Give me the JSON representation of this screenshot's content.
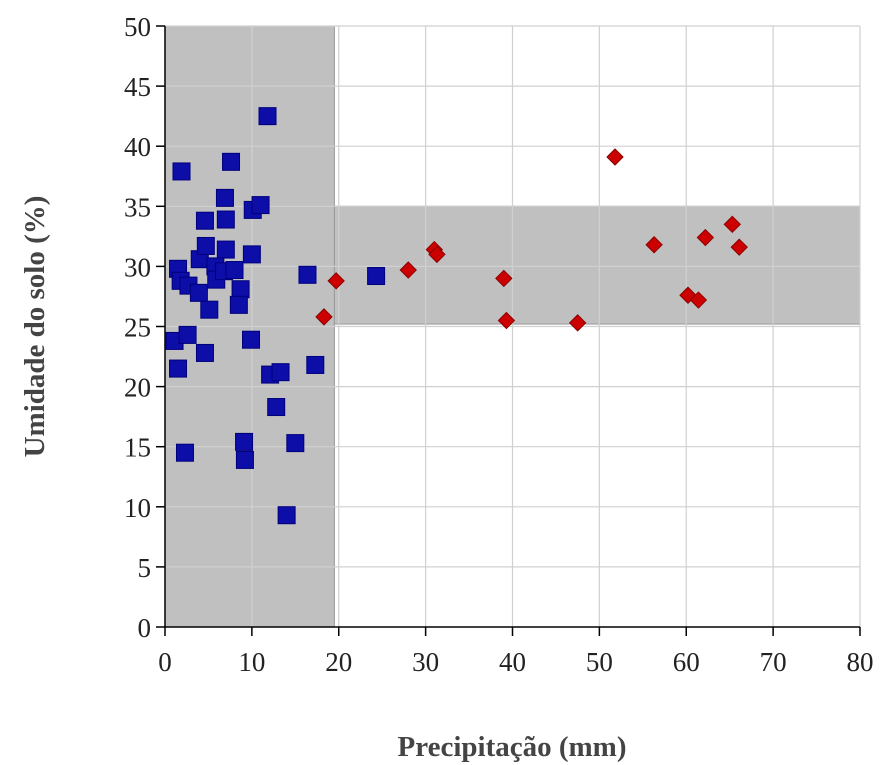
{
  "chart_data": {
    "type": "scatter",
    "title": "",
    "xlabel": "Precipitação (mm)",
    "ylabel": "Umidade do solo (%)",
    "xlim": [
      0,
      80
    ],
    "ylim": [
      0,
      50
    ],
    "xticks": [
      "0",
      "10",
      "20",
      "30",
      "40",
      "50",
      "60",
      "70",
      "80"
    ],
    "yticks": [
      "0",
      "5",
      "10",
      "15",
      "20",
      "25",
      "30",
      "35",
      "40",
      "45",
      "50"
    ],
    "grid": true,
    "legend": "none",
    "shaded_regions": [
      {
        "x": [
          0,
          19.5
        ],
        "y": [
          0,
          50
        ]
      },
      {
        "x": [
          19.5,
          80
        ],
        "y": [
          25.2,
          35
        ]
      }
    ],
    "series": [
      {
        "marker": "square",
        "color": "#0d0da8",
        "points": [
          [
            1.9,
            37.9
          ],
          [
            1.5,
            29.8
          ],
          [
            1.8,
            28.8
          ],
          [
            2.7,
            28.4
          ],
          [
            1.1,
            23.8
          ],
          [
            1.5,
            21.5
          ],
          [
            2.6,
            24.3
          ],
          [
            2.3,
            14.5
          ],
          [
            3.9,
            27.8
          ],
          [
            4.0,
            30.6
          ],
          [
            4.6,
            33.8
          ],
          [
            4.7,
            31.7
          ],
          [
            4.6,
            22.8
          ],
          [
            5.1,
            26.4
          ],
          [
            5.8,
            30.0
          ],
          [
            5.9,
            28.9
          ],
          [
            6.9,
            35.7
          ],
          [
            7.0,
            33.9
          ],
          [
            7.0,
            31.4
          ],
          [
            6.8,
            29.6
          ],
          [
            7.6,
            38.7
          ],
          [
            8.0,
            29.7
          ],
          [
            8.7,
            28.1
          ],
          [
            8.5,
            26.8
          ],
          [
            9.1,
            15.4
          ],
          [
            9.2,
            13.9
          ],
          [
            10.0,
            31.0
          ],
          [
            10.1,
            34.7
          ],
          [
            11.0,
            35.1
          ],
          [
            9.9,
            23.9
          ],
          [
            11.8,
            42.5
          ],
          [
            12.1,
            21.0
          ],
          [
            12.8,
            18.3
          ],
          [
            13.3,
            21.2
          ],
          [
            14.0,
            9.3
          ],
          [
            15.0,
            15.3
          ],
          [
            16.4,
            29.3
          ],
          [
            17.3,
            21.8
          ],
          [
            24.3,
            29.2
          ]
        ]
      },
      {
        "marker": "diamond",
        "color": "#cc0000",
        "points": [
          [
            18.3,
            25.8
          ],
          [
            19.7,
            28.8
          ],
          [
            28.0,
            29.7
          ],
          [
            31.0,
            31.4
          ],
          [
            31.3,
            31.0
          ],
          [
            39.0,
            29.0
          ],
          [
            39.3,
            25.5
          ],
          [
            47.5,
            25.3
          ],
          [
            51.8,
            39.1
          ],
          [
            56.3,
            31.8
          ],
          [
            60.2,
            27.6
          ],
          [
            61.4,
            27.2
          ],
          [
            62.2,
            32.4
          ],
          [
            65.3,
            33.5
          ],
          [
            66.1,
            31.6
          ]
        ]
      }
    ]
  }
}
